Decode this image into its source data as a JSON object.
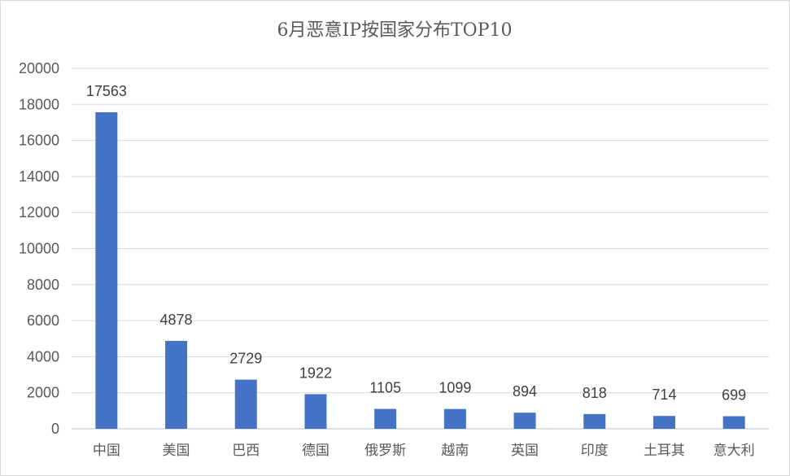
{
  "chart_data": {
    "type": "bar",
    "title": "6月恶意IP按国家分布TOP10",
    "categories": [
      "中国",
      "美国",
      "巴西",
      "德国",
      "俄罗斯",
      "越南",
      "英国",
      "印度",
      "土耳其",
      "意大利"
    ],
    "values": [
      17563,
      4878,
      2729,
      1922,
      1105,
      1099,
      894,
      818,
      714,
      699
    ],
    "ylim": [
      0,
      20000
    ],
    "yticks": [
      0,
      2000,
      4000,
      6000,
      8000,
      10000,
      12000,
      14000,
      16000,
      18000,
      20000
    ],
    "grid": true,
    "legend": "none",
    "bar_color": "#4472C4",
    "data_labels": true
  }
}
